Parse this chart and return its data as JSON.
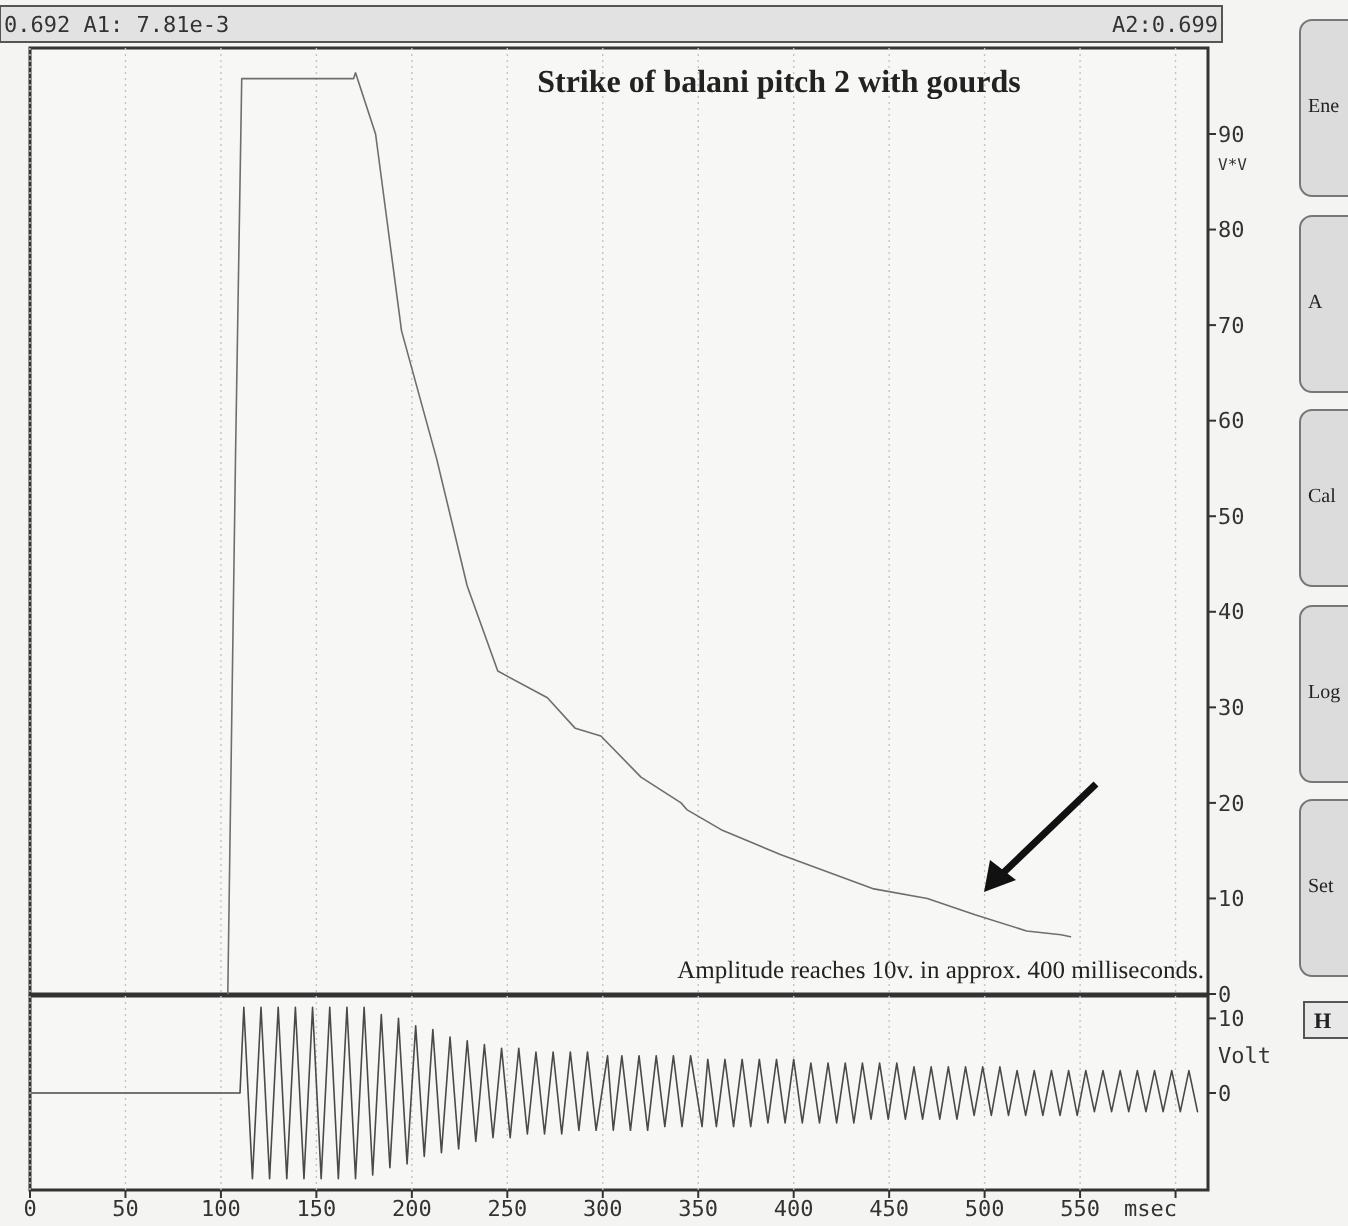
{
  "chart_data": [
    {
      "type": "line",
      "title": "Strike of balani pitch 2 with gourds",
      "ylabel": "V*V",
      "annotations": [
        "0.692  A1: 7.81e-3",
        "A2:0.699",
        "Amplitude reaches 10v. in approx. 400 milliseconds."
      ],
      "xlim": [
        0,
        617
      ],
      "ylim": [
        0,
        99
      ],
      "xticks": [
        0,
        50,
        100,
        150,
        200,
        250,
        300,
        350,
        400,
        450,
        500,
        550,
        600
      ],
      "yticks": [
        0,
        10,
        20,
        30,
        40,
        50,
        60,
        70,
        80,
        90
      ],
      "grid": "x",
      "tick_labels": "y",
      "series": [
        {
          "color": "#6e6e6e",
          "x": [
            103.6,
            107.7,
            110.9,
            169.5,
            170.5,
            181,
            194.6,
            213,
            229,
            245,
            271,
            285.6,
            299,
            320,
            341,
            344,
            362,
            393,
            442,
            470,
            495,
            522,
            540,
            545
          ],
          "values": [
            0,
            57,
            95.8,
            95.8,
            96.4,
            90,
            69.4,
            56,
            42.7,
            33.8,
            31,
            27.8,
            27,
            22.7,
            20,
            19.3,
            17.2,
            14.6,
            11,
            10,
            8.3,
            6.6,
            6.2,
            6
          ]
        }
      ]
    },
    {
      "type": "line",
      "ylabel": "Volt",
      "xlabel": "msec",
      "xlim": [
        0,
        617
      ],
      "ylim": [
        -13,
        13
      ],
      "yticks": [
        0,
        10
      ],
      "xticks": [
        0,
        50,
        100,
        150,
        200,
        250,
        300,
        350,
        400,
        450,
        500,
        550,
        {
          "value": 600,
          "label": null
        }
      ],
      "grid": "x",
      "series": [
        {
          "color": "#4a4a4a",
          "x": [
            1,
            110,
            112,
            116.5,
            121,
            125.5,
            130,
            134.5,
            139,
            143.5,
            148,
            152.5,
            157,
            161.5,
            166,
            170.5,
            175,
            179.5,
            184,
            188.5,
            193,
            197.5,
            202,
            206.5,
            211,
            215.5,
            220,
            224.5,
            229,
            233.5,
            238,
            242.5,
            247,
            251.5,
            256,
            260.5,
            265,
            269.5,
            274,
            278.5,
            283,
            287.5,
            292,
            296.5,
            302.5,
            305.5,
            310,
            314.5,
            319,
            323.5,
            328,
            332.5,
            337,
            341.5,
            346,
            352,
            355,
            359.5,
            364,
            368.5,
            373,
            377.5,
            382,
            386.5,
            391,
            395.5,
            400,
            404.5,
            409,
            413.5,
            418,
            422.5,
            427,
            431.5,
            436,
            440.5,
            445,
            449.5,
            454,
            458.5,
            463,
            467.5,
            472,
            476.5,
            481,
            485.5,
            490,
            494.5,
            499,
            503.5,
            508,
            512.5,
            517,
            521.5,
            526,
            530.5,
            535,
            539.5,
            544,
            548.5,
            553,
            557.5,
            562,
            566.5,
            571,
            575.5,
            580,
            584.5,
            589,
            593.5,
            598,
            602.5,
            607,
            611.5
          ],
          "values": [
            0,
            0,
            11.5,
            -11.5,
            11.5,
            -11.5,
            11.5,
            -11.5,
            11.5,
            -11.5,
            11.5,
            -11.5,
            11.5,
            -11.5,
            11.5,
            -11.5,
            11.5,
            -11,
            10.5,
            -10,
            10,
            -9.5,
            9,
            -8.5,
            8.5,
            -8,
            7.5,
            -7.5,
            7,
            -6.5,
            6.5,
            -6,
            6,
            -6,
            6,
            -5.5,
            5.5,
            -5.5,
            5.5,
            -5.5,
            5.5,
            -5,
            5.5,
            -5,
            5,
            -5,
            5,
            -5,
            5,
            -5,
            5,
            -4.5,
            5,
            -4.5,
            5,
            -4.5,
            4.5,
            -4.5,
            4.5,
            -4.5,
            4.5,
            -4.5,
            4.5,
            -4,
            4.5,
            -4,
            4.5,
            -4,
            4,
            -4,
            4,
            -4,
            4,
            -4,
            4,
            -3.5,
            4,
            -3.5,
            4,
            -3.5,
            3.5,
            -3.5,
            3.5,
            -3.5,
            3.5,
            -3.5,
            3.5,
            -3,
            3.5,
            -3,
            3.5,
            -3,
            3,
            -3,
            3,
            -3,
            3,
            -3,
            3,
            -3,
            3,
            -2.5,
            3,
            -2.5,
            3,
            -2.5,
            3,
            -2.5,
            3,
            -2.5,
            3,
            -2.5,
            3,
            -2.5
          ]
        }
      ]
    },
    {
      "type": "other",
      "annotations": [
        "Ene",
        "A",
        "Cal",
        "Log",
        "Set",
        "H"
      ]
    }
  ]
}
